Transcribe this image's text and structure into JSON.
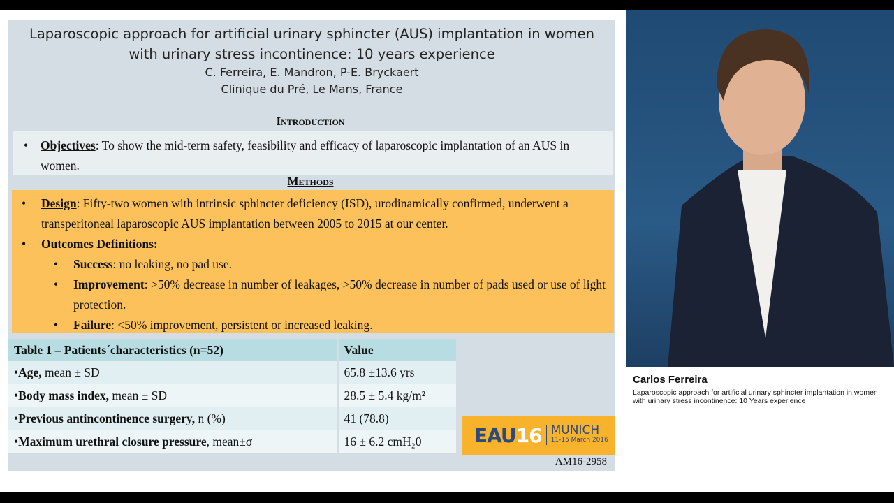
{
  "slide": {
    "title": "Laparoscopic approach for artificial urinary sphincter (AUS) implantation in women with urinary stress incontinence: 10 years experience",
    "authors": "C. Ferreira, E. Mandron, P-E. Bryckaert",
    "affiliation": "Clinique du Pré, Le Mans, France",
    "introduction": {
      "heading": "Introduction",
      "objectives_label": "Objectives",
      "objectives_text": ": To show the mid-term safety, feasibility and efficacy of laparoscopic implantation of an AUS in women."
    },
    "methods": {
      "heading": "Methods",
      "design_label": "Design",
      "design_text": ": Fifty-two women with intrinsic sphincter deficiency (ISD), urodinamically confirmed, underwent a transperitoneal laparoscopic AUS implantation between 2005 to 2015 at our center.",
      "outcomes_label": "Outcomes Definitions:",
      "outcomes": [
        {
          "label": "Success",
          "text": ": no leaking, no pad use."
        },
        {
          "label": "Improvement",
          "text": ": >50% decrease in number of leakages, >50% decrease in number of pads used or use of light protection."
        },
        {
          "label": "Failure",
          "text": ": <50% improvement, persistent or increased leaking."
        }
      ]
    },
    "table": {
      "headers": [
        "Table 1 – Patients´characteristics (n=52)",
        "Value"
      ],
      "rows": [
        {
          "bold": "Age,",
          "rest": " mean ± SD",
          "value": "65.8 ±13.6 yrs"
        },
        {
          "bold": "Body mass index,",
          "rest": " mean ± SD",
          "value": "28.5 ± 5.4 kg/m²"
        },
        {
          "bold": "Previous antincontinence surgery,",
          "rest": " n (%)",
          "value": "41 (78.8)"
        },
        {
          "bold": "Maximum urethral closure pressure",
          "rest": ", mean±σ",
          "value": "16 ± 6.2 cmH₂0"
        }
      ]
    },
    "logo": {
      "eau": "EAU",
      "num": "16",
      "city": "MUNICH",
      "dates": "11-15 March 2016"
    },
    "code": "AM16-2958"
  },
  "speaker": {
    "name": "Carlos Ferreira",
    "description": "Laparoscopic approach for artificial urinary sphincter implantation in women with urinary stress incontinence: 10 Years experience"
  }
}
